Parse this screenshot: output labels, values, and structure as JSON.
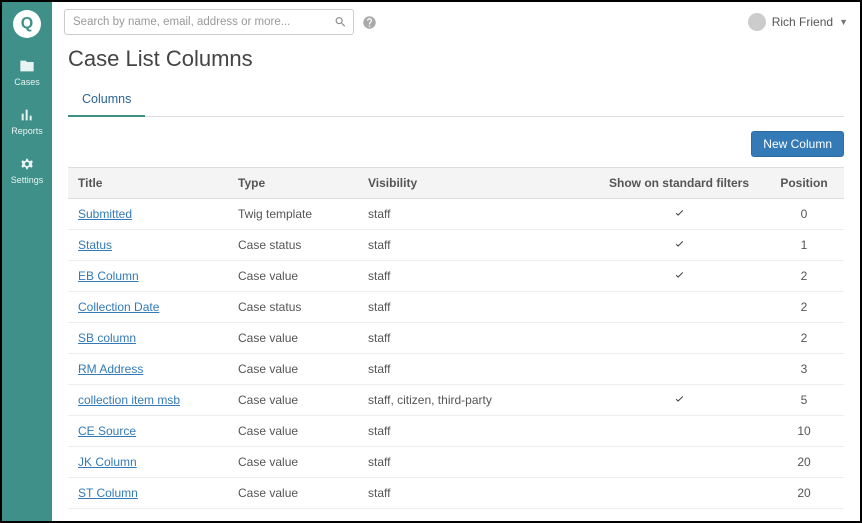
{
  "brand_letter": "Q",
  "sidebar": {
    "items": [
      {
        "label": "Cases",
        "icon": "folder"
      },
      {
        "label": "Reports",
        "icon": "chart"
      },
      {
        "label": "Settings",
        "icon": "gear"
      }
    ]
  },
  "search": {
    "placeholder": "Search by name, email, address or more..."
  },
  "user": {
    "name": "Rich Friend"
  },
  "page_title": "Case List Columns",
  "tabs": [
    {
      "label": "Columns",
      "active": true
    }
  ],
  "new_button_label": "New Column",
  "table": {
    "headers": {
      "title": "Title",
      "type": "Type",
      "visibility": "Visibility",
      "show": "Show on standard filters",
      "position": "Position"
    },
    "rows": [
      {
        "title": "Submitted",
        "type": "Twig template",
        "visibility": "staff",
        "show": true,
        "position": 0
      },
      {
        "title": "Status",
        "type": "Case status",
        "visibility": "staff",
        "show": true,
        "position": 1
      },
      {
        "title": "EB Column",
        "type": "Case value",
        "visibility": "staff",
        "show": true,
        "position": 2
      },
      {
        "title": "Collection Date",
        "type": "Case status",
        "visibility": "staff",
        "show": false,
        "position": 2
      },
      {
        "title": "SB column",
        "type": "Case value",
        "visibility": "staff",
        "show": false,
        "position": 2
      },
      {
        "title": "RM Address",
        "type": "Case value",
        "visibility": "staff",
        "show": false,
        "position": 3
      },
      {
        "title": "collection item msb",
        "type": "Case value",
        "visibility": "staff, citizen, third-party",
        "show": true,
        "position": 5
      },
      {
        "title": "CE Source",
        "type": "Case value",
        "visibility": "staff",
        "show": false,
        "position": 10
      },
      {
        "title": "JK Column",
        "type": "Case value",
        "visibility": "staff",
        "show": false,
        "position": 20
      },
      {
        "title": "ST Column",
        "type": "Case value",
        "visibility": "staff",
        "show": false,
        "position": 20
      }
    ]
  },
  "colors": {
    "sidebar_bg": "#3e9088",
    "primary_btn": "#337ab7",
    "link": "#337ab7",
    "header_bg": "#f4f4f4",
    "border": "#ddd"
  }
}
